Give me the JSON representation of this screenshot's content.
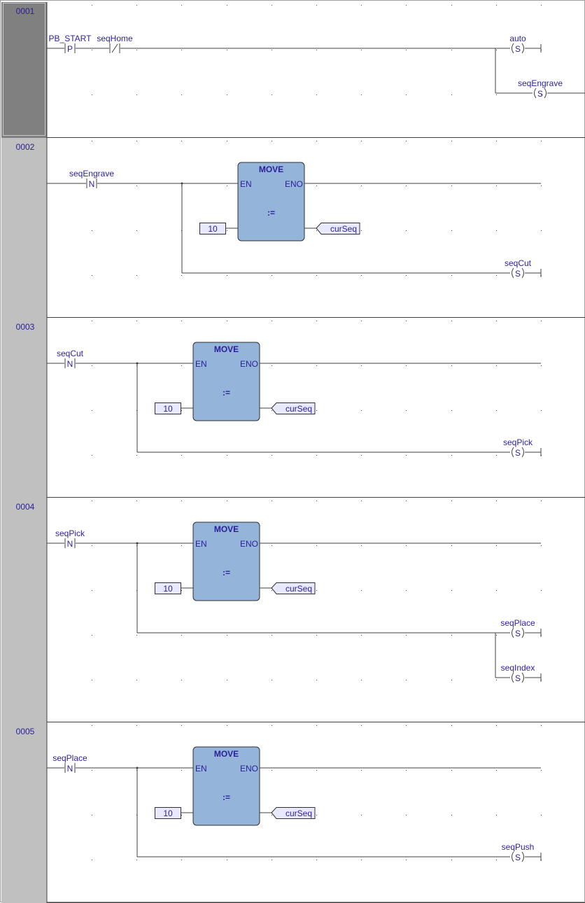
{
  "colors": {
    "gutter": "#c0c0c0",
    "gutter_selected": "#808080",
    "block_fill": "#94b4d9",
    "label": "#2a1f9a",
    "wire": "#404040"
  },
  "networks": [
    {
      "number": "0001",
      "selected": true,
      "contacts": [
        {
          "name": "PB_START",
          "type": "P"
        },
        {
          "name": "seqHome",
          "type": "/"
        }
      ],
      "coils": [
        {
          "name": "auto",
          "type": "S"
        },
        {
          "name": "seqEngrave",
          "type": "S"
        }
      ]
    },
    {
      "number": "0002",
      "selected": false,
      "contacts": [
        {
          "name": "seqEngrave",
          "type": "N"
        }
      ],
      "block": {
        "title": "MOVE",
        "en": "EN",
        "eno": "ENO",
        "op": ":=",
        "input": "10",
        "output": "curSeq"
      },
      "coils": [
        {
          "name": "seqCut",
          "type": "S"
        }
      ]
    },
    {
      "number": "0003",
      "selected": false,
      "contacts": [
        {
          "name": "seqCut",
          "type": "N"
        }
      ],
      "block": {
        "title": "MOVE",
        "en": "EN",
        "eno": "ENO",
        "op": ":=",
        "input": "10",
        "output": "curSeq"
      },
      "coils": [
        {
          "name": "seqPick",
          "type": "S"
        }
      ]
    },
    {
      "number": "0004",
      "selected": false,
      "contacts": [
        {
          "name": "seqPick",
          "type": "N"
        }
      ],
      "block": {
        "title": "MOVE",
        "en": "EN",
        "eno": "ENO",
        "op": ":=",
        "input": "10",
        "output": "curSeq"
      },
      "coils": [
        {
          "name": "seqPlace",
          "type": "S"
        },
        {
          "name": "seqIndex",
          "type": "S"
        }
      ]
    },
    {
      "number": "0005",
      "selected": false,
      "contacts": [
        {
          "name": "seqPlace",
          "type": "N"
        }
      ],
      "block": {
        "title": "MOVE",
        "en": "EN",
        "eno": "ENO",
        "op": ":=",
        "input": "10",
        "output": "curSeq"
      },
      "coils": [
        {
          "name": "seqPush",
          "type": "S"
        }
      ]
    }
  ]
}
